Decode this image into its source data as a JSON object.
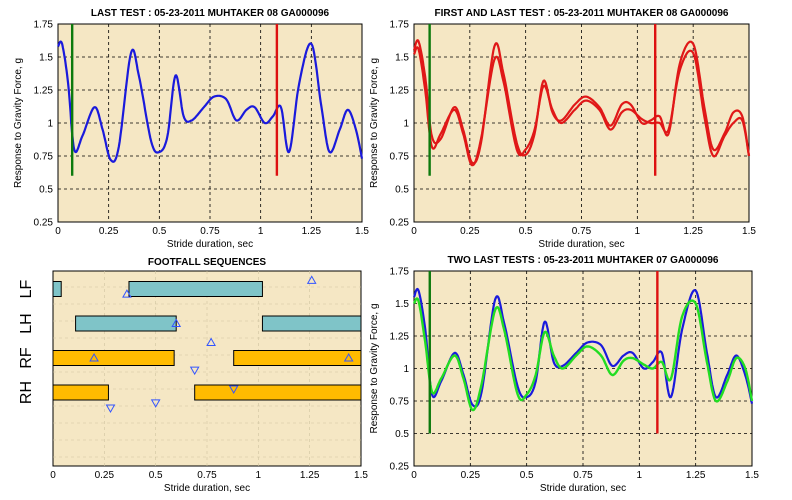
{
  "colors": {
    "plot_bg": "#f5e7c4",
    "grid": "#000000",
    "blue": "#1a1adc",
    "red": "#e01818",
    "green": "#22dd22",
    "dark_green": "#0d7a0d",
    "marker_red": "#dd1111",
    "teal_bar": "#7fc4c8",
    "orange_bar": "#ffbb00",
    "triangle": "#3355ff"
  },
  "chart_data": [
    {
      "id": "last-test",
      "type": "line",
      "title": "LAST TEST : 05-23-2011  MUHTAKER 08 GA000096",
      "xlabel": "Stride duration, sec",
      "ylabel": "Response to Gravity Force, g",
      "xlim": [
        0,
        1.5
      ],
      "ylim": [
        0.25,
        1.75
      ],
      "xticks": [
        "0",
        "0.25",
        "0.5",
        "0.75",
        "1",
        "1.25",
        "1.5"
      ],
      "yticks": [
        "0.25",
        "0.5",
        "0.75",
        "1",
        "1.25",
        "1.5",
        "1.75"
      ],
      "grid": true,
      "series": [
        {
          "color": "blue",
          "width": 2.2,
          "kp": [
            [
              0,
              1.58
            ],
            [
              0.02,
              1.6
            ],
            [
              0.05,
              1.3
            ],
            [
              0.08,
              0.8
            ],
            [
              0.12,
              0.9
            ],
            [
              0.18,
              1.12
            ],
            [
              0.22,
              0.95
            ],
            [
              0.26,
              0.72
            ],
            [
              0.3,
              0.82
            ],
            [
              0.36,
              1.53
            ],
            [
              0.4,
              1.35
            ],
            [
              0.46,
              0.86
            ],
            [
              0.5,
              0.78
            ],
            [
              0.54,
              0.9
            ],
            [
              0.58,
              1.36
            ],
            [
              0.62,
              1.05
            ],
            [
              0.66,
              1.02
            ],
            [
              0.72,
              1.12
            ],
            [
              0.77,
              1.2
            ],
            [
              0.83,
              1.18
            ],
            [
              0.88,
              1.02
            ],
            [
              0.93,
              1.1
            ],
            [
              0.97,
              1.12
            ],
            [
              1.02,
              1.0
            ],
            [
              1.06,
              1.05
            ],
            [
              1.1,
              1.12
            ],
            [
              1.14,
              0.78
            ],
            [
              1.19,
              1.3
            ],
            [
              1.25,
              1.6
            ],
            [
              1.3,
              1.12
            ],
            [
              1.34,
              0.78
            ],
            [
              1.39,
              0.95
            ],
            [
              1.43,
              1.1
            ],
            [
              1.47,
              0.95
            ],
            [
              1.5,
              0.73
            ]
          ]
        }
      ],
      "vlines": [
        {
          "x": 0.07,
          "y0": 0.6,
          "y1": 1.75,
          "color": "dark_green"
        },
        {
          "x": 1.08,
          "y0": 0.6,
          "y1": 1.75,
          "color": "marker_red"
        }
      ]
    },
    {
      "id": "first-last-test",
      "type": "line",
      "title": "FIRST AND LAST TEST : 05-23-2011  MUHTAKER 08 GA000096",
      "xlabel": "Stride duration, sec",
      "ylabel": "Response to Gravity Force, g",
      "xlim": [
        0,
        1.5
      ],
      "ylim": [
        0.25,
        1.75
      ],
      "xticks": [
        "0",
        "0.25",
        "0.5",
        "0.75",
        "1",
        "1.25",
        "1.5"
      ],
      "yticks": [
        "0.25",
        "0.5",
        "0.75",
        "1",
        "1.25",
        "1.5",
        "1.75"
      ],
      "grid": true,
      "series": [
        {
          "color": "red",
          "width": 2.2,
          "kp": [
            [
              0,
              1.55
            ],
            [
              0.02,
              1.62
            ],
            [
              0.05,
              1.35
            ],
            [
              0.08,
              0.9
            ],
            [
              0.12,
              0.88
            ],
            [
              0.18,
              1.12
            ],
            [
              0.22,
              0.95
            ],
            [
              0.26,
              0.7
            ],
            [
              0.3,
              0.85
            ],
            [
              0.36,
              1.58
            ],
            [
              0.4,
              1.38
            ],
            [
              0.46,
              0.85
            ],
            [
              0.5,
              0.76
            ],
            [
              0.54,
              0.92
            ],
            [
              0.58,
              1.32
            ],
            [
              0.62,
              1.08
            ],
            [
              0.66,
              1.02
            ],
            [
              0.72,
              1.14
            ],
            [
              0.77,
              1.2
            ],
            [
              0.83,
              1.12
            ],
            [
              0.88,
              0.98
            ],
            [
              0.93,
              1.14
            ],
            [
              0.97,
              1.14
            ],
            [
              1.02,
              1.0
            ],
            [
              1.06,
              1.02
            ],
            [
              1.1,
              1.05
            ],
            [
              1.14,
              0.92
            ],
            [
              1.19,
              1.45
            ],
            [
              1.25,
              1.6
            ],
            [
              1.3,
              1.12
            ],
            [
              1.34,
              0.8
            ],
            [
              1.39,
              0.92
            ],
            [
              1.43,
              1.08
            ],
            [
              1.47,
              1.05
            ],
            [
              1.5,
              0.75
            ]
          ]
        },
        {
          "color": "red",
          "width": 2.2,
          "kp": [
            [
              0,
              1.52
            ],
            [
              0.02,
              1.56
            ],
            [
              0.05,
              1.25
            ],
            [
              0.08,
              0.82
            ],
            [
              0.12,
              0.92
            ],
            [
              0.18,
              1.1
            ],
            [
              0.22,
              0.92
            ],
            [
              0.26,
              0.68
            ],
            [
              0.3,
              0.88
            ],
            [
              0.36,
              1.48
            ],
            [
              0.4,
              1.32
            ],
            [
              0.46,
              0.8
            ],
            [
              0.5,
              0.8
            ],
            [
              0.54,
              0.95
            ],
            [
              0.58,
              1.28
            ],
            [
              0.62,
              1.1
            ],
            [
              0.66,
              1.0
            ],
            [
              0.72,
              1.1
            ],
            [
              0.77,
              1.17
            ],
            [
              0.83,
              1.1
            ],
            [
              0.88,
              0.95
            ],
            [
              0.93,
              1.08
            ],
            [
              0.97,
              1.1
            ],
            [
              1.02,
              1.03
            ],
            [
              1.06,
              1.0
            ],
            [
              1.1,
              1.0
            ],
            [
              1.14,
              0.95
            ],
            [
              1.19,
              1.4
            ],
            [
              1.25,
              1.53
            ],
            [
              1.3,
              1.05
            ],
            [
              1.34,
              0.75
            ],
            [
              1.39,
              0.9
            ],
            [
              1.43,
              1.0
            ],
            [
              1.47,
              1.02
            ],
            [
              1.5,
              0.75
            ]
          ]
        }
      ],
      "vlines": [
        {
          "x": 0.07,
          "y0": 0.6,
          "y1": 1.75,
          "color": "dark_green"
        },
        {
          "x": 1.08,
          "y0": 0.6,
          "y1": 1.75,
          "color": "marker_red"
        }
      ]
    },
    {
      "id": "footfall",
      "type": "bar",
      "title": "FOOTFALL SEQUENCES",
      "xlabel": "Stride duration, sec",
      "xlim": [
        0,
        1.5
      ],
      "xticks": [
        "0",
        "0.25",
        "0.5",
        "0.75",
        "1",
        "1.25",
        "1.5"
      ],
      "legs": [
        "LF",
        "LH",
        "RF",
        "RH"
      ],
      "bars": [
        {
          "leg": "LF",
          "start": 0.0,
          "end": 0.04,
          "color": "teal_bar"
        },
        {
          "leg": "LF",
          "start": 0.37,
          "end": 1.02,
          "color": "teal_bar"
        },
        {
          "leg": "LH",
          "start": 0.11,
          "end": 0.6,
          "color": "teal_bar"
        },
        {
          "leg": "LH",
          "start": 1.02,
          "end": 1.5,
          "color": "teal_bar"
        },
        {
          "leg": "RF",
          "start": 0.0,
          "end": 0.59,
          "color": "orange_bar"
        },
        {
          "leg": "RF",
          "start": 0.88,
          "end": 1.5,
          "color": "orange_bar"
        },
        {
          "leg": "RH",
          "start": 0.0,
          "end": 0.27,
          "color": "orange_bar"
        },
        {
          "leg": "RH",
          "start": 0.69,
          "end": 1.5,
          "color": "orange_bar"
        }
      ],
      "markers": [
        {
          "x": 0.36,
          "lane": 0.15,
          "dir": "up"
        },
        {
          "x": 1.26,
          "lane": -0.25,
          "dir": "up"
        },
        {
          "x": 0.6,
          "lane": 1.0,
          "dir": "up"
        },
        {
          "x": 0.77,
          "lane": 1.55,
          "dir": "up"
        },
        {
          "x": 0.2,
          "lane": 2.0,
          "dir": "up"
        },
        {
          "x": 1.44,
          "lane": 2.0,
          "dir": "up"
        },
        {
          "x": 0.69,
          "lane": 2.35,
          "dir": "down"
        },
        {
          "x": 0.88,
          "lane": 2.9,
          "dir": "down"
        },
        {
          "x": 0.28,
          "lane": 3.45,
          "dir": "down"
        },
        {
          "x": 0.5,
          "lane": 3.3,
          "dir": "down"
        }
      ]
    },
    {
      "id": "two-last-tests",
      "type": "line",
      "title": "TWO LAST TESTS : 05-23-2011  MUHTAKER 07 GA000096",
      "xlabel": "Stride duration, sec",
      "ylabel": "Response to Gravity Force, g",
      "xlim": [
        0,
        1.5
      ],
      "ylim": [
        0.25,
        1.75
      ],
      "xticks": [
        "0",
        "0.25",
        "0.5",
        "0.75",
        "1",
        "1.25",
        "1.5"
      ],
      "yticks": [
        "0.25",
        "0.5",
        "0.75",
        "1",
        "1.25",
        "1.5",
        "1.75"
      ],
      "grid": true,
      "series": [
        {
          "color": "blue",
          "width": 2.2,
          "kp": [
            [
              0,
              1.55
            ],
            [
              0.02,
              1.6
            ],
            [
              0.05,
              1.3
            ],
            [
              0.08,
              0.8
            ],
            [
              0.12,
              0.9
            ],
            [
              0.18,
              1.12
            ],
            [
              0.22,
              0.95
            ],
            [
              0.26,
              0.72
            ],
            [
              0.3,
              0.82
            ],
            [
              0.36,
              1.53
            ],
            [
              0.4,
              1.35
            ],
            [
              0.46,
              0.86
            ],
            [
              0.5,
              0.78
            ],
            [
              0.54,
              0.9
            ],
            [
              0.58,
              1.36
            ],
            [
              0.62,
              1.05
            ],
            [
              0.66,
              1.02
            ],
            [
              0.72,
              1.12
            ],
            [
              0.77,
              1.2
            ],
            [
              0.83,
              1.18
            ],
            [
              0.88,
              1.02
            ],
            [
              0.93,
              1.1
            ],
            [
              0.97,
              1.12
            ],
            [
              1.02,
              1.0
            ],
            [
              1.06,
              1.05
            ],
            [
              1.1,
              1.12
            ],
            [
              1.14,
              0.78
            ],
            [
              1.19,
              1.3
            ],
            [
              1.25,
              1.6
            ],
            [
              1.3,
              1.12
            ],
            [
              1.34,
              0.78
            ],
            [
              1.39,
              0.95
            ],
            [
              1.43,
              1.1
            ],
            [
              1.47,
              0.95
            ],
            [
              1.5,
              0.73
            ]
          ]
        },
        {
          "color": "green",
          "width": 2.4,
          "kp": [
            [
              0,
              1.5
            ],
            [
              0.02,
              1.52
            ],
            [
              0.05,
              1.2
            ],
            [
              0.08,
              0.82
            ],
            [
              0.12,
              0.92
            ],
            [
              0.18,
              1.1
            ],
            [
              0.22,
              0.92
            ],
            [
              0.26,
              0.68
            ],
            [
              0.3,
              0.88
            ],
            [
              0.36,
              1.45
            ],
            [
              0.4,
              1.3
            ],
            [
              0.46,
              0.8
            ],
            [
              0.5,
              0.8
            ],
            [
              0.54,
              0.95
            ],
            [
              0.58,
              1.28
            ],
            [
              0.62,
              1.1
            ],
            [
              0.66,
              1.0
            ],
            [
              0.72,
              1.1
            ],
            [
              0.77,
              1.17
            ],
            [
              0.83,
              1.1
            ],
            [
              0.88,
              0.95
            ],
            [
              0.93,
              1.06
            ],
            [
              0.97,
              1.08
            ],
            [
              1.02,
              1.03
            ],
            [
              1.06,
              1.0
            ],
            [
              1.1,
              1.05
            ],
            [
              1.14,
              0.92
            ],
            [
              1.19,
              1.4
            ],
            [
              1.25,
              1.5
            ],
            [
              1.3,
              1.05
            ],
            [
              1.34,
              0.75
            ],
            [
              1.39,
              0.9
            ],
            [
              1.43,
              1.08
            ],
            [
              1.47,
              1.0
            ],
            [
              1.5,
              0.75
            ]
          ]
        }
      ],
      "vlines": [
        {
          "x": 0.07,
          "y0": 0.5,
          "y1": 1.75,
          "color": "dark_green"
        },
        {
          "x": 1.08,
          "y0": 0.5,
          "y1": 1.75,
          "color": "marker_red"
        }
      ]
    }
  ]
}
